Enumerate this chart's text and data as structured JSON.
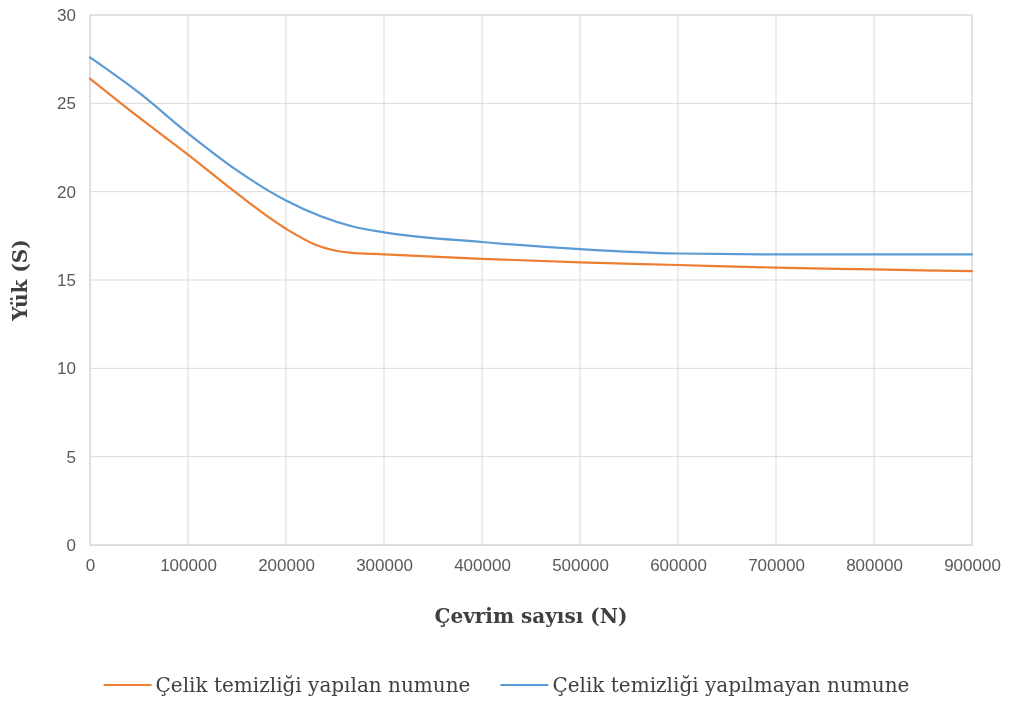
{
  "chart_data": {
    "type": "line",
    "xlabel": "Çevrim sayısı (N)",
    "ylabel": "Yük (S)",
    "xlim": [
      0,
      900000
    ],
    "xticks": [
      0,
      100000,
      200000,
      300000,
      400000,
      500000,
      600000,
      700000,
      800000,
      900000
    ],
    "ylim": [
      0,
      30
    ],
    "yticks": [
      0,
      5,
      10,
      15,
      20,
      25,
      30
    ],
    "grid": true,
    "legend": "bottom",
    "marker": "none",
    "line_style": "solid",
    "series": [
      {
        "name": "Çelik temizliği yapılan numune",
        "color": "#ed7d31",
        "x": [
          0,
          50000,
          100000,
          150000,
          200000,
          230000,
          265000,
          300000,
          400000,
          500000,
          600000,
          700000,
          800000,
          900000
        ],
        "values": [
          26.4,
          24.2,
          22.1,
          19.9,
          17.9,
          17.0,
          16.55,
          16.45,
          16.2,
          16.0,
          15.85,
          15.7,
          15.6,
          15.5
        ]
      },
      {
        "name": "Çelik temizliği yapılmayan numune",
        "color": "#5b9bd5",
        "x": [
          0,
          50000,
          100000,
          150000,
          200000,
          270000,
          300000,
          400000,
          500000,
          600000,
          700000,
          800000,
          900000
        ],
        "values": [
          27.6,
          25.6,
          23.3,
          21.2,
          19.5,
          18.0,
          17.7,
          17.15,
          16.75,
          16.5,
          16.45,
          16.45,
          16.45
        ]
      }
    ]
  }
}
